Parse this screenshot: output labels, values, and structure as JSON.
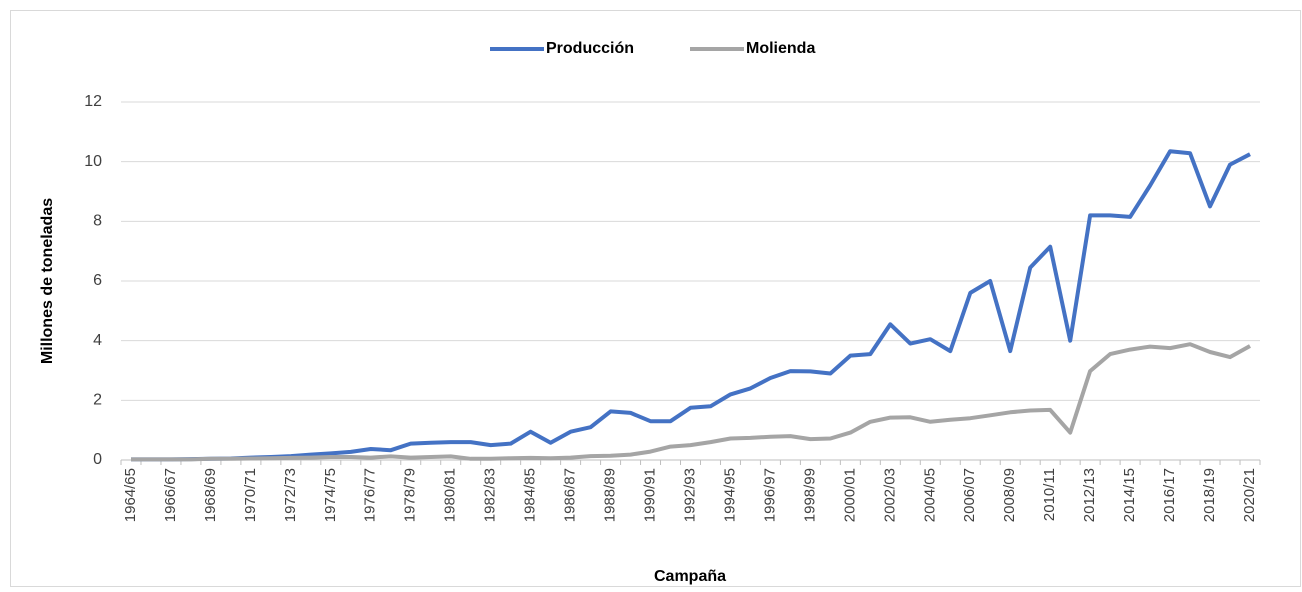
{
  "chart_data": {
    "type": "line",
    "x_label": "Campaña",
    "y_label": "Millones de toneladas",
    "categories": [
      "1964/65",
      null,
      "1966/67",
      null,
      "1968/69",
      null,
      "1970/71",
      null,
      "1972/73",
      null,
      "1974/75",
      null,
      "1976/77",
      null,
      "1978/79",
      null,
      "1980/81",
      null,
      "1982/83",
      null,
      "1984/85",
      null,
      "1986/87",
      null,
      "1988/89",
      null,
      "1990/91",
      null,
      "1992/93",
      null,
      "1994/95",
      null,
      "1996/97",
      null,
      "1998/99",
      null,
      "2000/01",
      null,
      "2002/03",
      null,
      "2004/05",
      null,
      "2006/07",
      null,
      "2008/09",
      null,
      "2010/11",
      null,
      "2012/13",
      null,
      "2014/15",
      null,
      "2016/17",
      null,
      "2018/19",
      null,
      "2020/21"
    ],
    "series": [
      {
        "name": "Producción",
        "color": "#4472c4",
        "values": [
          0.02,
          0.02,
          0.02,
          0.03,
          0.04,
          0.05,
          0.08,
          0.1,
          0.13,
          0.18,
          0.22,
          0.27,
          0.37,
          0.33,
          0.55,
          0.58,
          0.6,
          0.6,
          0.5,
          0.55,
          0.95,
          0.58,
          0.95,
          1.1,
          1.63,
          1.58,
          1.3,
          1.3,
          1.75,
          1.8,
          2.2,
          2.4,
          2.75,
          2.98,
          2.97,
          2.9,
          3.5,
          3.55,
          4.55,
          3.9,
          4.05,
          3.65,
          5.6,
          6.0,
          3.65,
          6.45,
          7.15,
          4.0,
          8.2,
          8.2,
          8.15,
          9.2,
          10.35,
          10.28,
          8.5,
          9.9,
          10.25
        ]
      },
      {
        "name": "Molienda",
        "color": "#a5a5a5",
        "values": [
          0.02,
          0.02,
          0.02,
          0.02,
          0.04,
          0.04,
          0.05,
          0.06,
          0.07,
          0.08,
          0.1,
          0.1,
          0.08,
          0.12,
          0.08,
          0.1,
          0.12,
          0.04,
          0.04,
          0.06,
          0.07,
          0.06,
          0.08,
          0.13,
          0.14,
          0.18,
          0.28,
          0.45,
          0.5,
          0.6,
          0.72,
          0.74,
          0.78,
          0.8,
          0.7,
          0.72,
          0.92,
          1.28,
          1.42,
          1.43,
          1.28,
          1.35,
          1.4,
          1.5,
          1.6,
          1.66,
          1.68,
          0.92,
          2.98,
          3.55,
          3.7,
          3.8,
          3.75,
          3.88,
          3.62,
          3.45,
          3.82
        ]
      }
    ],
    "ylim": [
      0,
      12
    ],
    "yticks": [
      0,
      2,
      4,
      6,
      8,
      10,
      12
    ],
    "grid": true,
    "legend": "top"
  }
}
